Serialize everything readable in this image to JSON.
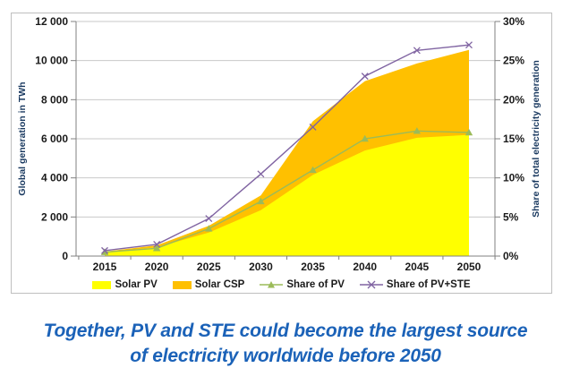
{
  "chart_data": {
    "type": "area+line combo",
    "x": [
      2015,
      2020,
      2025,
      2030,
      2035,
      2040,
      2045,
      2050
    ],
    "x_tick_labels": [
      "2015",
      "2020",
      "2025",
      "2030",
      "2035",
      "2040",
      "2045",
      "2050"
    ],
    "series": [
      {
        "name": "Solar PV",
        "type": "area",
        "axis": "left",
        "marker": "rect",
        "values": [
          200,
          450,
          1200,
          2350,
          4150,
          5400,
          6050,
          6200
        ],
        "color": "#FFFF00"
      },
      {
        "name": "Solar CSP",
        "type": "area",
        "axis": "left",
        "marker": "rect",
        "stacked_on": "Solar PV",
        "values": [
          30,
          100,
          350,
          750,
          2750,
          3550,
          3800,
          4350
        ],
        "color": "#FFC000"
      },
      {
        "name": "Share of PV",
        "type": "line",
        "axis": "right",
        "marker": "triangle",
        "values": [
          0.5,
          1,
          3.5,
          7,
          11,
          15,
          16,
          15.8
        ],
        "color": "#9BBB59"
      },
      {
        "name": "Share of PV+STE",
        "type": "line",
        "axis": "right",
        "marker": "x",
        "values": [
          0.7,
          1.5,
          4.8,
          10.5,
          16.5,
          23,
          26.3,
          27
        ],
        "color": "#8064A2"
      }
    ],
    "left_axis": {
      "label": "Global generation in TWh",
      "min": 0,
      "max": 12000,
      "tick_step": 2000,
      "tick_labels": [
        "12 000",
        "10 000",
        "8 000",
        "6 000",
        "4 000",
        "2 000",
        "0"
      ]
    },
    "right_axis": {
      "label": "Share of total electricity generation",
      "min": 0,
      "max": 30,
      "tick_step": 5,
      "tick_labels": [
        "30%",
        "25%",
        "20%",
        "15%",
        "10%",
        "5%",
        "0%"
      ]
    },
    "grid": true,
    "legend_position": "bottom"
  },
  "colors": {
    "caption": "#1B62B8",
    "axis_title": "#17375E",
    "tick_label": "#1a1a1a",
    "grid": "#c9c9c9",
    "axis": "#808080",
    "frame_border": "#bfbfbf"
  },
  "caption": {
    "line1": "Together, PV and STE could become the largest source",
    "line2": "of electricity worldwide before 2050"
  }
}
